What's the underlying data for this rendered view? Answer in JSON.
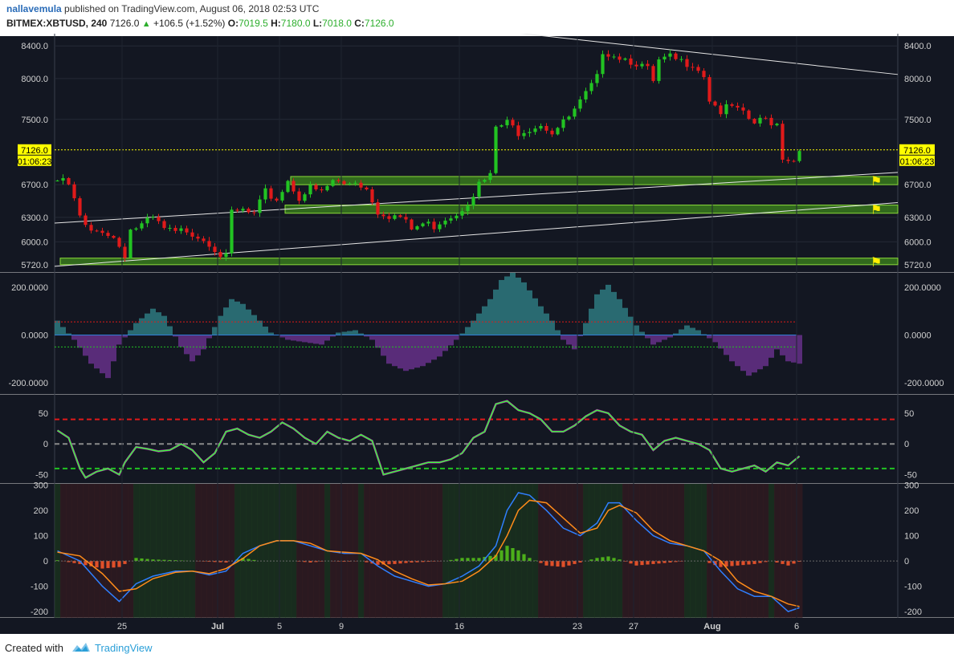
{
  "header": {
    "author": "nallavemula",
    "published": "published on TradingView.com, August 06, 2018 02:53 UTC",
    "symbol": "BITMEX:XBTUSD, 240",
    "last": "7126.0",
    "change": "+106.5 (+1.52%)",
    "open_label": "O:",
    "open": "7019.5",
    "high_label": "H:",
    "high": "7180.0",
    "low_label": "L:",
    "low": "7018.0",
    "close_label": "C:",
    "close": "7126.0"
  },
  "footer": {
    "created": "Created with",
    "brand": "TradingView"
  },
  "colors": {
    "background": "#131722",
    "up": "#22c322",
    "down": "#e01a1a",
    "zone": "#4caf1a",
    "axis_text": "#d0d0d0",
    "price_tag": "#ffff00"
  },
  "chart_data": [
    {
      "type": "candlestick",
      "title": "",
      "x_ticks": [
        "25",
        "Jul",
        "5",
        "9",
        "16",
        "23",
        "27",
        "Aug",
        "6"
      ],
      "y_ticks": [
        "8400.0",
        "8000.0",
        "7500.0",
        "6700.0",
        "6300.0",
        "6000.0",
        "5720.0"
      ],
      "y_tick_values": [
        8400,
        8000,
        7500,
        6700,
        6300,
        6000,
        5720
      ],
      "last_price": "7126.0",
      "countdown": "01:06:23",
      "price_path": [
        [
          0,
          6750
        ],
        [
          2,
          6700
        ],
        [
          4,
          6300
        ],
        [
          5,
          6180
        ],
        [
          6,
          6100
        ],
        [
          8,
          6150
        ],
        [
          10,
          6050
        ],
        [
          12,
          5850
        ],
        [
          13,
          6150
        ],
        [
          15,
          6200
        ],
        [
          17,
          6280
        ],
        [
          19,
          6150
        ],
        [
          21,
          6100
        ],
        [
          23,
          6150
        ],
        [
          25,
          6080
        ],
        [
          27,
          6000
        ],
        [
          29,
          5850
        ],
        [
          30,
          5800
        ],
        [
          31,
          6350
        ],
        [
          33,
          6380
        ],
        [
          35,
          6320
        ],
        [
          37,
          6600
        ],
        [
          39,
          6520
        ],
        [
          41,
          6750
        ],
        [
          43,
          6550
        ],
        [
          45,
          6650
        ],
        [
          47,
          6600
        ],
        [
          49,
          6750
        ],
        [
          51,
          6700
        ],
        [
          53,
          6750
        ],
        [
          55,
          6650
        ],
        [
          57,
          6380
        ],
        [
          59,
          6330
        ],
        [
          61,
          6300
        ],
        [
          63,
          6150
        ],
        [
          65,
          6220
        ],
        [
          67,
          6200
        ],
        [
          69,
          6300
        ],
        [
          71,
          6350
        ],
        [
          73,
          6500
        ],
        [
          75,
          6700
        ],
        [
          77,
          6800
        ],
        [
          78,
          7400
        ],
        [
          80,
          7450
        ],
        [
          82,
          7350
        ],
        [
          84,
          7400
        ],
        [
          86,
          7450
        ],
        [
          88,
          7350
        ],
        [
          90,
          7450
        ],
        [
          92,
          7600
        ],
        [
          94,
          7800
        ],
        [
          96,
          8000
        ],
        [
          97,
          8350
        ],
        [
          99,
          8300
        ],
        [
          101,
          8250
        ],
        [
          103,
          8200
        ],
        [
          105,
          8100
        ],
        [
          106,
          7950
        ],
        [
          107,
          8200
        ],
        [
          109,
          8250
        ],
        [
          111,
          8200
        ],
        [
          113,
          8200
        ],
        [
          115,
          8050
        ],
        [
          116,
          7750
        ],
        [
          118,
          7600
        ],
        [
          120,
          7650
        ],
        [
          122,
          7550
        ],
        [
          124,
          7450
        ],
        [
          126,
          7500
        ],
        [
          128,
          7450
        ],
        [
          129,
          7050
        ],
        [
          131,
          7000
        ],
        [
          132,
          7126
        ]
      ],
      "zones": [
        {
          "x0": 42,
          "x1": 150,
          "y0": 6700,
          "y1": 6800
        },
        {
          "x0": 41,
          "x1": 150,
          "y0": 6350,
          "y1": 6450
        },
        {
          "x0": 1,
          "x1": 150,
          "y0": 5720,
          "y1": 5800
        }
      ],
      "trendlines": [
        {
          "x0": 50,
          "y0": 8800,
          "x1": 150,
          "y1": 8050
        },
        {
          "x0": 0,
          "y0": 6230,
          "x1": 150,
          "y1": 6850
        },
        {
          "x0": 0,
          "y0": 5700,
          "x1": 150,
          "y1": 6480
        }
      ]
    },
    {
      "type": "area",
      "title": "",
      "y_ticks": [
        "200.0000",
        "0.0000",
        "-200.0000"
      ],
      "y_tick_values": [
        200,
        0,
        -200
      ],
      "upper_band": 55,
      "lower_band": -50,
      "wave_path": [
        [
          0,
          60
        ],
        [
          3,
          -20
        ],
        [
          6,
          -120
        ],
        [
          9,
          -180
        ],
        [
          11,
          -40
        ],
        [
          14,
          50
        ],
        [
          17,
          110
        ],
        [
          19,
          80
        ],
        [
          22,
          -50
        ],
        [
          24,
          -110
        ],
        [
          26,
          -60
        ],
        [
          29,
          80
        ],
        [
          31,
          150
        ],
        [
          33,
          130
        ],
        [
          36,
          60
        ],
        [
          38,
          10
        ],
        [
          41,
          -20
        ],
        [
          44,
          -30
        ],
        [
          47,
          -40
        ],
        [
          50,
          10
        ],
        [
          53,
          20
        ],
        [
          56,
          -20
        ],
        [
          59,
          -120
        ],
        [
          62,
          -150
        ],
        [
          65,
          -130
        ],
        [
          68,
          -90
        ],
        [
          71,
          -20
        ],
        [
          74,
          60
        ],
        [
          77,
          150
        ],
        [
          79,
          230
        ],
        [
          81,
          260
        ],
        [
          83,
          220
        ],
        [
          86,
          120
        ],
        [
          88,
          60
        ],
        [
          90,
          -20
        ],
        [
          92,
          -60
        ],
        [
          94,
          50
        ],
        [
          96,
          170
        ],
        [
          98,
          210
        ],
        [
          100,
          150
        ],
        [
          103,
          40
        ],
        [
          106,
          -40
        ],
        [
          109,
          -10
        ],
        [
          112,
          40
        ],
        [
          114,
          20
        ],
        [
          117,
          -30
        ],
        [
          120,
          -110
        ],
        [
          123,
          -170
        ],
        [
          126,
          -130
        ],
        [
          128,
          -60
        ],
        [
          130,
          -110
        ],
        [
          132,
          -120
        ]
      ]
    },
    {
      "type": "line",
      "title": "",
      "y_ticks": [
        "50",
        "0",
        "-50"
      ],
      "y_tick_values": [
        50,
        0,
        -50
      ],
      "levels": [
        40,
        0,
        -40
      ],
      "oscillator": [
        [
          0,
          22
        ],
        [
          2,
          10
        ],
        [
          4,
          -40
        ],
        [
          5,
          -55
        ],
        [
          7,
          -45
        ],
        [
          9,
          -40
        ],
        [
          11,
          -50
        ],
        [
          12,
          -30
        ],
        [
          14,
          -5
        ],
        [
          16,
          -8
        ],
        [
          18,
          -12
        ],
        [
          20,
          -10
        ],
        [
          22,
          0
        ],
        [
          24,
          -10
        ],
        [
          26,
          -30
        ],
        [
          28,
          -15
        ],
        [
          30,
          20
        ],
        [
          32,
          25
        ],
        [
          34,
          15
        ],
        [
          36,
          10
        ],
        [
          38,
          20
        ],
        [
          40,
          35
        ],
        [
          42,
          25
        ],
        [
          44,
          10
        ],
        [
          46,
          0
        ],
        [
          48,
          20
        ],
        [
          50,
          10
        ],
        [
          52,
          5
        ],
        [
          54,
          15
        ],
        [
          56,
          5
        ],
        [
          58,
          -50
        ],
        [
          60,
          -45
        ],
        [
          62,
          -40
        ],
        [
          64,
          -35
        ],
        [
          66,
          -30
        ],
        [
          68,
          -30
        ],
        [
          70,
          -25
        ],
        [
          72,
          -15
        ],
        [
          74,
          10
        ],
        [
          76,
          20
        ],
        [
          78,
          65
        ],
        [
          80,
          70
        ],
        [
          82,
          55
        ],
        [
          84,
          50
        ],
        [
          86,
          40
        ],
        [
          88,
          20
        ],
        [
          90,
          20
        ],
        [
          92,
          30
        ],
        [
          94,
          45
        ],
        [
          96,
          55
        ],
        [
          98,
          50
        ],
        [
          100,
          30
        ],
        [
          102,
          20
        ],
        [
          104,
          15
        ],
        [
          106,
          -10
        ],
        [
          108,
          5
        ],
        [
          110,
          10
        ],
        [
          112,
          5
        ],
        [
          114,
          0
        ],
        [
          116,
          -10
        ],
        [
          118,
          -40
        ],
        [
          120,
          -45
        ],
        [
          122,
          -40
        ],
        [
          124,
          -35
        ],
        [
          126,
          -45
        ],
        [
          128,
          -30
        ],
        [
          130,
          -35
        ],
        [
          132,
          -20
        ]
      ]
    },
    {
      "type": "line",
      "title": "",
      "y_ticks": [
        "300",
        "200",
        "100",
        "0",
        "-100",
        "-200"
      ],
      "y_tick_values": [
        300,
        200,
        100,
        0,
        -100,
        -200
      ],
      "fast": [
        [
          0,
          40
        ],
        [
          4,
          0
        ],
        [
          8,
          -100
        ],
        [
          11,
          -160
        ],
        [
          14,
          -90
        ],
        [
          17,
          -60
        ],
        [
          21,
          -40
        ],
        [
          24,
          -40
        ],
        [
          27,
          -55
        ],
        [
          30,
          -40
        ],
        [
          33,
          30
        ],
        [
          36,
          60
        ],
        [
          39,
          80
        ],
        [
          42,
          80
        ],
        [
          45,
          60
        ],
        [
          48,
          40
        ],
        [
          51,
          30
        ],
        [
          54,
          30
        ],
        [
          57,
          -20
        ],
        [
          60,
          -60
        ],
        [
          63,
          -80
        ],
        [
          66,
          -100
        ],
        [
          69,
          -90
        ],
        [
          72,
          -60
        ],
        [
          75,
          -20
        ],
        [
          78,
          60
        ],
        [
          80,
          200
        ],
        [
          82,
          270
        ],
        [
          84,
          260
        ],
        [
          87,
          200
        ],
        [
          90,
          130
        ],
        [
          93,
          100
        ],
        [
          96,
          150
        ],
        [
          98,
          230
        ],
        [
          100,
          230
        ],
        [
          103,
          160
        ],
        [
          106,
          100
        ],
        [
          109,
          70
        ],
        [
          112,
          60
        ],
        [
          115,
          40
        ],
        [
          118,
          -40
        ],
        [
          121,
          -110
        ],
        [
          124,
          -140
        ],
        [
          127,
          -140
        ],
        [
          130,
          -200
        ],
        [
          132,
          -185
        ]
      ],
      "slow": [
        [
          0,
          35
        ],
        [
          4,
          20
        ],
        [
          8,
          -50
        ],
        [
          11,
          -120
        ],
        [
          14,
          -110
        ],
        [
          17,
          -70
        ],
        [
          21,
          -45
        ],
        [
          24,
          -40
        ],
        [
          27,
          -50
        ],
        [
          30,
          -30
        ],
        [
          33,
          10
        ],
        [
          36,
          60
        ],
        [
          39,
          80
        ],
        [
          42,
          80
        ],
        [
          45,
          70
        ],
        [
          48,
          40
        ],
        [
          51,
          35
        ],
        [
          54,
          30
        ],
        [
          57,
          5
        ],
        [
          60,
          -40
        ],
        [
          63,
          -70
        ],
        [
          66,
          -95
        ],
        [
          69,
          -90
        ],
        [
          72,
          -80
        ],
        [
          75,
          -40
        ],
        [
          78,
          20
        ],
        [
          80,
          100
        ],
        [
          82,
          200
        ],
        [
          84,
          240
        ],
        [
          87,
          230
        ],
        [
          90,
          170
        ],
        [
          93,
          110
        ],
        [
          96,
          130
        ],
        [
          98,
          200
        ],
        [
          100,
          220
        ],
        [
          103,
          190
        ],
        [
          106,
          120
        ],
        [
          109,
          80
        ],
        [
          112,
          60
        ],
        [
          115,
          40
        ],
        [
          118,
          0
        ],
        [
          121,
          -80
        ],
        [
          124,
          -120
        ],
        [
          127,
          -140
        ],
        [
          130,
          -170
        ],
        [
          132,
          -180
        ]
      ]
    }
  ]
}
